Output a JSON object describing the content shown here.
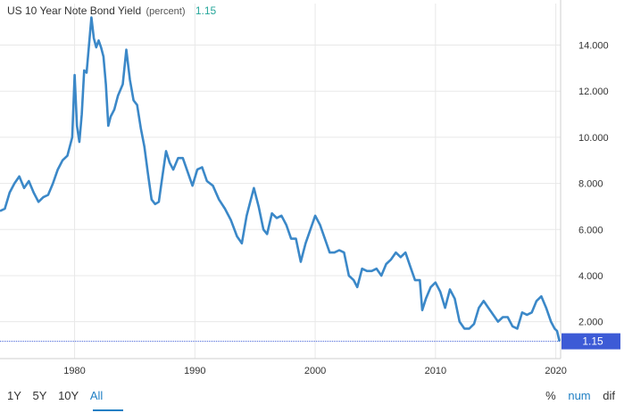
{
  "header": {
    "title": "US 10 Year Note Bond Yield",
    "unit": "(percent)",
    "last_value": "1.15"
  },
  "range_buttons": [
    "1Y",
    "5Y",
    "10Y",
    "All"
  ],
  "range_selected": "All",
  "mode_buttons": [
    "%",
    "num",
    "dif"
  ],
  "mode_selected": "num",
  "colors": {
    "line": "#3b88c8",
    "grid": "#e8e8e8",
    "last_marker_bg": "#3d5bd6",
    "last_marker_text": "#ffffff",
    "reference_line": "#3d5bd6",
    "title_value": "#26a69a",
    "active_button": "#1f7fc4"
  },
  "chart_data": {
    "type": "line",
    "title": "US 10 Year Note Bond Yield",
    "ylabel": "",
    "xlabel": "",
    "xlim": [
      1973.8,
      2020.4
    ],
    "ylim": [
      0.4,
      15.8
    ],
    "x_ticks": [
      1980,
      1990,
      2000,
      2010,
      2020
    ],
    "y_ticks": [
      2,
      4,
      6,
      8,
      10,
      12,
      14
    ],
    "y_tick_labels": [
      "2.000",
      "4.000",
      "6.000",
      "8.000",
      "10.000",
      "12.000",
      "14.000"
    ],
    "grid": true,
    "last_value_marker": 1.15,
    "series": [
      {
        "x": [
          1973.8,
          1974.2,
          1974.6,
          1975.0,
          1975.4,
          1975.8,
          1976.2,
          1976.6,
          1977.0,
          1977.4,
          1977.8,
          1978.2,
          1978.6,
          1979.0,
          1979.4,
          1979.8,
          1980.0,
          1980.2,
          1980.4,
          1980.6,
          1980.8,
          1981.0,
          1981.2,
          1981.4,
          1981.6,
          1981.8,
          1982.0,
          1982.2,
          1982.4,
          1982.6,
          1982.8,
          1983.0,
          1983.3,
          1983.6,
          1984.0,
          1984.3,
          1984.6,
          1984.9,
          1985.2,
          1985.5,
          1985.8,
          1986.1,
          1986.4,
          1986.7,
          1987.0,
          1987.3,
          1987.6,
          1987.9,
          1988.2,
          1988.6,
          1989.0,
          1989.4,
          1989.8,
          1990.2,
          1990.6,
          1991.0,
          1991.5,
          1992.0,
          1992.5,
          1993.0,
          1993.5,
          1993.9,
          1994.3,
          1994.6,
          1994.9,
          1995.3,
          1995.7,
          1996.0,
          1996.4,
          1996.8,
          1997.2,
          1997.6,
          1998.0,
          1998.4,
          1998.8,
          1999.2,
          1999.6,
          2000.0,
          2000.4,
          2000.8,
          2001.2,
          2001.6,
          2002.0,
          2002.4,
          2002.8,
          2003.2,
          2003.5,
          2003.9,
          2004.3,
          2004.7,
          2005.1,
          2005.5,
          2005.9,
          2006.3,
          2006.7,
          2007.1,
          2007.5,
          2007.9,
          2008.3,
          2008.7,
          2008.9,
          2009.2,
          2009.6,
          2010.0,
          2010.4,
          2010.8,
          2011.2,
          2011.6,
          2012.0,
          2012.4,
          2012.8,
          2013.2,
          2013.6,
          2014.0,
          2014.4,
          2014.8,
          2015.2,
          2015.6,
          2016.0,
          2016.4,
          2016.8,
          2017.2,
          2017.6,
          2018.0,
          2018.4,
          2018.8,
          2019.2,
          2019.6,
          2019.9,
          2020.1,
          2020.3
        ],
        "y": [
          6.8,
          6.9,
          7.6,
          8.0,
          8.3,
          7.8,
          8.1,
          7.6,
          7.2,
          7.4,
          7.5,
          8.0,
          8.6,
          9.0,
          9.2,
          10.0,
          12.7,
          10.5,
          9.8,
          11.0,
          12.9,
          12.8,
          14.0,
          15.2,
          14.3,
          13.9,
          14.2,
          13.9,
          13.5,
          12.3,
          10.5,
          10.9,
          11.2,
          11.8,
          12.3,
          13.8,
          12.5,
          11.6,
          11.4,
          10.4,
          9.6,
          8.4,
          7.3,
          7.1,
          7.2,
          8.3,
          9.4,
          8.9,
          8.6,
          9.1,
          9.1,
          8.5,
          7.9,
          8.6,
          8.7,
          8.1,
          7.9,
          7.3,
          6.9,
          6.4,
          5.7,
          5.4,
          6.6,
          7.2,
          7.8,
          7.0,
          6.0,
          5.8,
          6.7,
          6.5,
          6.6,
          6.2,
          5.6,
          5.6,
          4.6,
          5.4,
          6.0,
          6.6,
          6.2,
          5.6,
          5.0,
          5.0,
          5.1,
          5.0,
          4.0,
          3.8,
          3.5,
          4.3,
          4.2,
          4.2,
          4.3,
          4.0,
          4.5,
          4.7,
          5.0,
          4.8,
          5.0,
          4.4,
          3.8,
          3.8,
          2.5,
          3.0,
          3.5,
          3.7,
          3.3,
          2.6,
          3.4,
          3.0,
          2.0,
          1.7,
          1.7,
          1.9,
          2.6,
          2.9,
          2.6,
          2.3,
          2.0,
          2.2,
          2.2,
          1.8,
          1.7,
          2.4,
          2.3,
          2.4,
          2.9,
          3.1,
          2.6,
          2.0,
          1.7,
          1.6,
          1.15
        ]
      }
    ]
  }
}
